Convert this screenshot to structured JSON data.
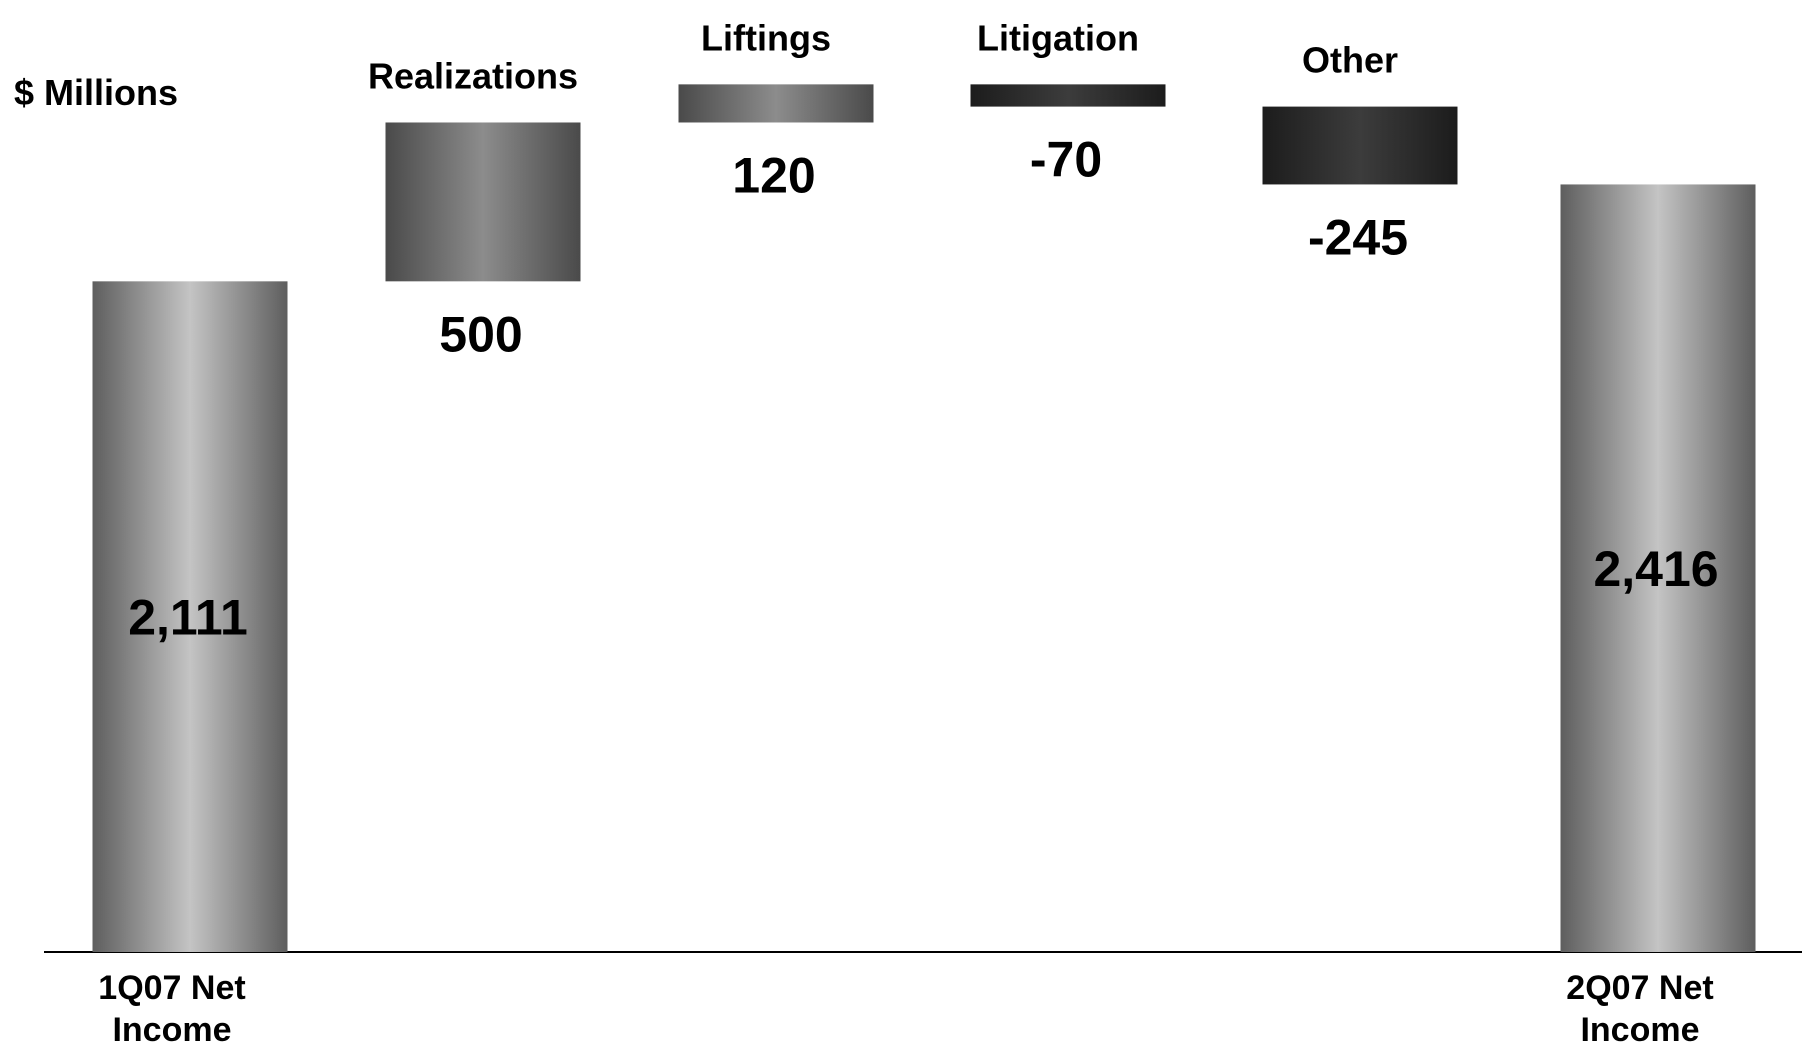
{
  "chart_data": {
    "type": "bar",
    "subtype": "waterfall",
    "unit_label": "$ Millions",
    "categories": [
      {
        "label_lines": [
          "1Q07 Net",
          "Income"
        ],
        "kind": "total",
        "value": 2111,
        "value_label": "2,111"
      },
      {
        "label_lines": [
          "Realizations"
        ],
        "kind": "delta",
        "value": 500,
        "value_label": "500"
      },
      {
        "label_lines": [
          "Liftings"
        ],
        "kind": "delta",
        "value": 120,
        "value_label": "120"
      },
      {
        "label_lines": [
          "Litigation"
        ],
        "kind": "delta",
        "value": -70,
        "value_label": "-70"
      },
      {
        "label_lines": [
          "Other"
        ],
        "kind": "delta",
        "value": -245,
        "value_label": "-245"
      },
      {
        "label_lines": [
          "2Q07 Net",
          "Income"
        ],
        "kind": "total",
        "value": 2416,
        "value_label": "2,416"
      }
    ],
    "ylim": [
      0,
      2700
    ],
    "grid": false,
    "legend": "none",
    "colors": {
      "total_edge": "#5e5e5e",
      "total_mid": "#c4c4c4",
      "up_edge": "#4a4a4a",
      "up_mid": "#8c8c8c",
      "down_edge": "#1c1c1c",
      "down_mid": "#3c3c3c",
      "baseline": "#000000"
    }
  }
}
